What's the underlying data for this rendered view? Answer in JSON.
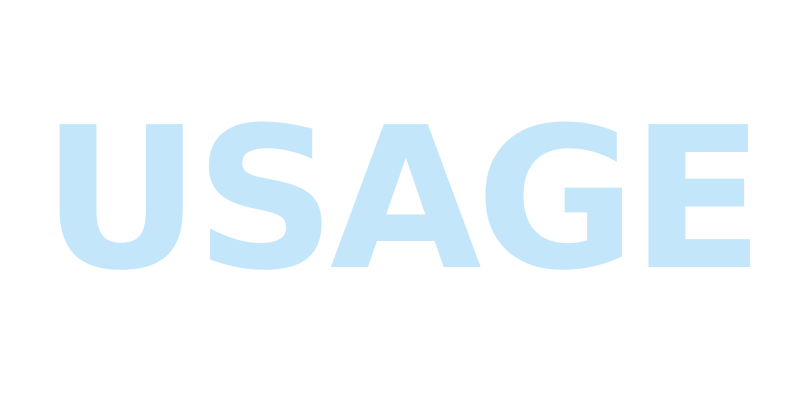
{
  "headline": {
    "text": "USAGE",
    "color": "#c3e6fa"
  },
  "background_color": "#ffffff"
}
